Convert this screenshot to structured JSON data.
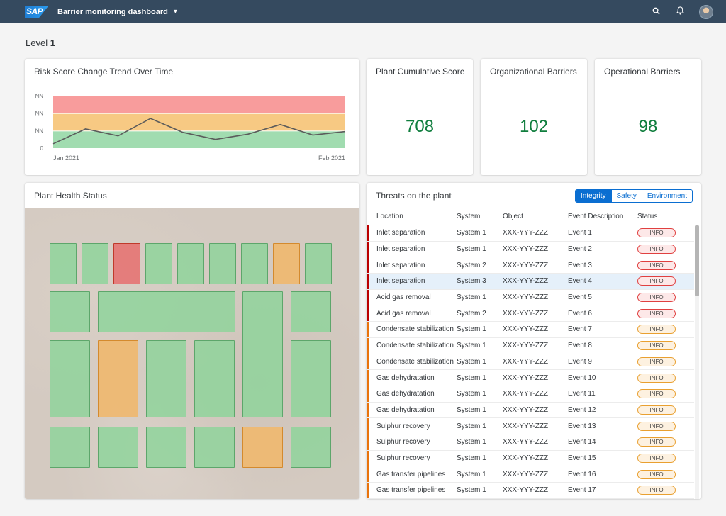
{
  "shell": {
    "logo": "SAP",
    "app_title": "Barrier monitoring dashboard",
    "dropdown_glyph": "▾",
    "icons": [
      "search-icon",
      "bell-icon",
      "user-avatar"
    ]
  },
  "level": {
    "label": "Level",
    "value": "1"
  },
  "risk_chart": {
    "title": "Risk Score Change Trend Over Time",
    "chart_data": {
      "type": "line",
      "title": "Risk Score Change Trend Over Time",
      "y_tick_labels": [
        "NN",
        "NN",
        "NN",
        "0"
      ],
      "x_tick_labels": [
        "Jan 2021",
        "Feb 2021"
      ],
      "bands": [
        {
          "name": "high",
          "color": "#f89c9c"
        },
        {
          "name": "medium",
          "color": "#f7c983"
        },
        {
          "name": "low",
          "color": "#a1dcb0"
        }
      ],
      "series": [
        {
          "values": [
            0.25,
            1.1,
            0.7,
            1.7,
            0.9,
            0.5,
            0.8,
            1.35,
            0.75,
            0.95
          ]
        }
      ],
      "ylim": [
        0,
        3
      ],
      "line_color": "#5b5b5b"
    }
  },
  "kpis": [
    {
      "title": "Plant Cumulative Score",
      "value": "708"
    },
    {
      "title": "Organizational Barriers",
      "value": "102"
    },
    {
      "title": "Operational Barriers",
      "value": "98"
    }
  ],
  "plant": {
    "title": "Plant Health Status",
    "status_colors": {
      "good": "#8fd49b",
      "warning": "#f0b86e",
      "critical": "#e66e6e"
    }
  },
  "threats": {
    "title": "Threats on the plant",
    "tabs": [
      {
        "label": "Integrity",
        "active": true
      },
      {
        "label": "Safety",
        "active": false
      },
      {
        "label": "Environment",
        "active": false
      }
    ],
    "columns": [
      "Location",
      "System",
      "Object",
      "Event Description",
      "Status"
    ],
    "severity_colors": {
      "red": "#bb0000",
      "orange": "#e9730c"
    },
    "rows": [
      {
        "location": "Inlet separation",
        "system": "System 1",
        "object": "XXX-YYY-ZZZ",
        "event": "Event 1",
        "status": "INFO",
        "severity": "red"
      },
      {
        "location": "Inlet separation",
        "system": "System 1",
        "object": "XXX-YYY-ZZZ",
        "event": "Event 2",
        "status": "INFO",
        "severity": "red"
      },
      {
        "location": "Inlet separation",
        "system": "System 2",
        "object": "XXX-YYY-ZZZ",
        "event": "Event 3",
        "status": "INFO",
        "severity": "red"
      },
      {
        "location": "Inlet separation",
        "system": "System 3",
        "object": "XXX-YYY-ZZZ",
        "event": "Event 4",
        "status": "INFO",
        "severity": "red",
        "selected": true
      },
      {
        "location": "Acid gas removal",
        "system": "System 1",
        "object": "XXX-YYY-ZZZ",
        "event": "Event 5",
        "status": "INFO",
        "severity": "red"
      },
      {
        "location": "Acid gas removal",
        "system": "System 2",
        "object": "XXX-YYY-ZZZ",
        "event": "Event 6",
        "status": "INFO",
        "severity": "red"
      },
      {
        "location": "Condensate stabilization",
        "system": "System 1",
        "object": "XXX-YYY-ZZZ",
        "event": "Event 7",
        "status": "INFO",
        "severity": "orange"
      },
      {
        "location": "Condensate stabilization",
        "system": "System 1",
        "object": "XXX-YYY-ZZZ",
        "event": "Event 8",
        "status": "INFO",
        "severity": "orange"
      },
      {
        "location": "Condensate stabilization",
        "system": "System 1",
        "object": "XXX-YYY-ZZZ",
        "event": "Event 9",
        "status": "INFO",
        "severity": "orange"
      },
      {
        "location": "Gas dehydratation",
        "system": "System 1",
        "object": "XXX-YYY-ZZZ",
        "event": "Event 10",
        "status": "INFO",
        "severity": "orange"
      },
      {
        "location": "Gas dehydratation",
        "system": "System 1",
        "object": "XXX-YYY-ZZZ",
        "event": "Event 11",
        "status": "INFO",
        "severity": "orange"
      },
      {
        "location": "Gas dehydratation",
        "system": "System 1",
        "object": "XXX-YYY-ZZZ",
        "event": "Event 12",
        "status": "INFO",
        "severity": "orange"
      },
      {
        "location": "Sulphur recovery",
        "system": "System 1",
        "object": "XXX-YYY-ZZZ",
        "event": "Event 13",
        "status": "INFO",
        "severity": "orange"
      },
      {
        "location": "Sulphur recovery",
        "system": "System 1",
        "object": "XXX-YYY-ZZZ",
        "event": "Event 14",
        "status": "INFO",
        "severity": "orange"
      },
      {
        "location": "Sulphur recovery",
        "system": "System 1",
        "object": "XXX-YYY-ZZZ",
        "event": "Event 15",
        "status": "INFO",
        "severity": "orange"
      },
      {
        "location": "Gas transfer pipelines",
        "system": "System 1",
        "object": "XXX-YYY-ZZZ",
        "event": "Event 16",
        "status": "INFO",
        "severity": "orange"
      },
      {
        "location": "Gas transfer pipelines",
        "system": "System 1",
        "object": "XXX-YYY-ZZZ",
        "event": "Event 17",
        "status": "INFO",
        "severity": "orange"
      }
    ]
  }
}
